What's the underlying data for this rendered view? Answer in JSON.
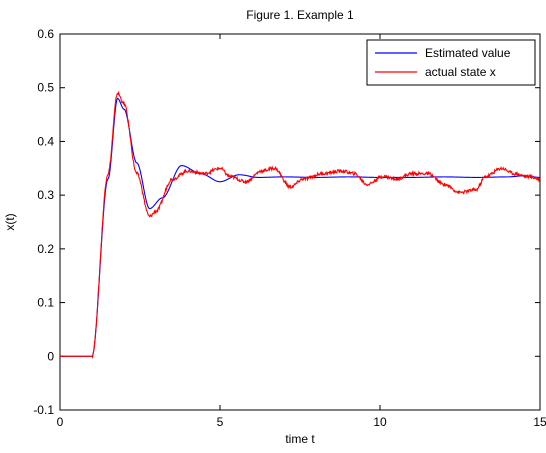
{
  "chart_data": {
    "type": "line",
    "title": "Figure 1. Example 1",
    "xlabel": "time t",
    "ylabel": "x(t)",
    "xlim": [
      0,
      15
    ],
    "ylim": [
      -0.1,
      0.6
    ],
    "x_ticks": [
      "0",
      "5",
      "10",
      "15"
    ],
    "y_ticks": [
      "-0.1",
      "0",
      "0.1",
      "0.2",
      "0.3",
      "0.4",
      "0.5",
      "0.6"
    ],
    "grid": false,
    "legend_position": "top-right",
    "series": [
      {
        "name": "Estimated value",
        "color": "#0000ff",
        "x": [
          0,
          1.0,
          1.5,
          1.8,
          2.0,
          2.4,
          2.8,
          3.2,
          3.8,
          4.4,
          5.0,
          5.6,
          6.2,
          7.0,
          8.0,
          9.0,
          10.0,
          11.0,
          12.0,
          13.0,
          14.0,
          14.5,
          15.0
        ],
        "values": [
          0,
          0,
          0.33,
          0.48,
          0.46,
          0.36,
          0.275,
          0.295,
          0.355,
          0.34,
          0.325,
          0.338,
          0.333,
          0.334,
          0.333,
          0.334,
          0.333,
          0.333,
          0.334,
          0.333,
          0.334,
          0.336,
          0.333
        ]
      },
      {
        "name": "actual state x",
        "color": "#ff0000",
        "x": [
          0,
          1.0,
          1.5,
          1.8,
          2.0,
          2.4,
          2.8,
          3.0,
          3.5,
          4.0,
          4.5,
          5.0,
          5.3,
          5.8,
          6.3,
          6.7,
          7.2,
          7.6,
          8.2,
          8.8,
          9.2,
          9.6,
          10.1,
          10.5,
          11.0,
          11.5,
          12.0,
          12.5,
          13.0,
          13.3,
          13.8,
          14.2,
          14.6,
          15.0
        ],
        "values": [
          0,
          0,
          0.34,
          0.49,
          0.47,
          0.34,
          0.26,
          0.27,
          0.33,
          0.345,
          0.34,
          0.35,
          0.335,
          0.325,
          0.345,
          0.35,
          0.315,
          0.33,
          0.34,
          0.345,
          0.34,
          0.32,
          0.335,
          0.33,
          0.34,
          0.34,
          0.32,
          0.305,
          0.31,
          0.335,
          0.35,
          0.34,
          0.335,
          0.33
        ]
      }
    ]
  }
}
